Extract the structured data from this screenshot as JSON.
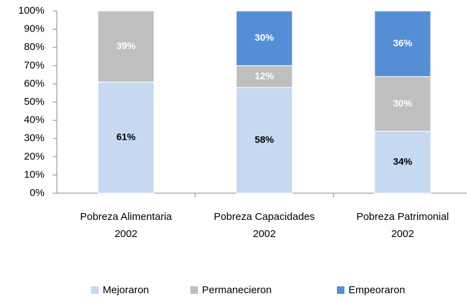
{
  "chart_data": {
    "type": "stacked_bar",
    "categories": [
      "Pobreza Alimentaria\n2002",
      "Pobreza Capacidades\n2002",
      "Pobreza Patrimonial\n2002"
    ],
    "series": [
      {
        "name": "Mejoraron",
        "color": "#c6d9f1",
        "label_color": "#000000",
        "values": [
          61,
          58,
          34
        ],
        "value_labels": [
          "61%",
          "58%",
          "34%"
        ]
      },
      {
        "name": "Permanecieron",
        "color": "#bfbfbf",
        "label_color": "#ffffff",
        "values": [
          39,
          12,
          30
        ],
        "value_labels": [
          "39%",
          "12%",
          "30%"
        ]
      },
      {
        "name": "Empeoraron",
        "color": "#558ed5",
        "label_color": "#ffffff",
        "values": [
          null,
          30,
          36
        ],
        "value_labels": [
          null,
          "30%",
          "36%"
        ]
      }
    ],
    "ylim": [
      0,
      100
    ],
    "yticks": [
      {
        "value": 0,
        "label": "0%"
      },
      {
        "value": 10,
        "label": "10%"
      },
      {
        "value": 20,
        "label": "20%"
      },
      {
        "value": 30,
        "label": "30%"
      },
      {
        "value": 40,
        "label": "40%"
      },
      {
        "value": 50,
        "label": "50%"
      },
      {
        "value": 60,
        "label": "60%"
      },
      {
        "value": 70,
        "label": "70%"
      },
      {
        "value": 80,
        "label": "80%"
      },
      {
        "value": 90,
        "label": "90%"
      },
      {
        "value": 100,
        "label": "100%"
      }
    ],
    "grid": false,
    "legend": "bottom"
  }
}
